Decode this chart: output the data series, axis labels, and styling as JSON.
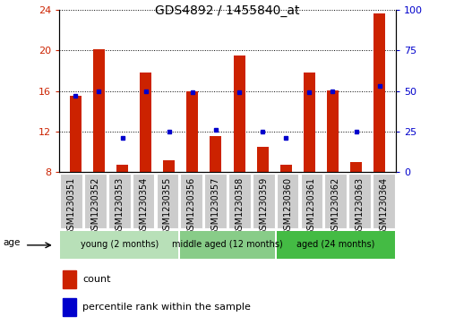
{
  "title": "GDS4892 / 1455840_at",
  "samples": [
    "GSM1230351",
    "GSM1230352",
    "GSM1230353",
    "GSM1230354",
    "GSM1230355",
    "GSM1230356",
    "GSM1230357",
    "GSM1230358",
    "GSM1230359",
    "GSM1230360",
    "GSM1230361",
    "GSM1230362",
    "GSM1230363",
    "GSM1230364"
  ],
  "count_values": [
    15.5,
    20.1,
    8.7,
    17.8,
    9.2,
    16.0,
    11.6,
    19.5,
    10.5,
    8.7,
    17.8,
    16.1,
    9.0,
    23.6
  ],
  "percentile_values": [
    47,
    50,
    21,
    50,
    25,
    49,
    26,
    49,
    25,
    21,
    49,
    50,
    25,
    53
  ],
  "ylim_left": [
    8,
    24
  ],
  "ylim_right": [
    0,
    100
  ],
  "yticks_left": [
    8,
    12,
    16,
    20,
    24
  ],
  "yticks_right": [
    0,
    25,
    50,
    75,
    100
  ],
  "bar_color": "#cc2200",
  "dot_color": "#0000cc",
  "bar_bottom": 8,
  "groups": [
    {
      "label": "young (2 months)",
      "start": 0,
      "end": 5,
      "color": "#b8e0b8"
    },
    {
      "label": "middle aged (12 months)",
      "start": 5,
      "end": 9,
      "color": "#88cc88"
    },
    {
      "label": "aged (24 months)",
      "start": 9,
      "end": 14,
      "color": "#44bb44"
    }
  ],
  "legend_count_label": "count",
  "legend_pct_label": "percentile rank within the sample",
  "age_label": "age",
  "left_axis_color": "#cc2200",
  "right_axis_color": "#0000cc",
  "title_fontsize": 10,
  "tick_fontsize": 8,
  "label_fontsize": 7,
  "bar_width": 0.5,
  "sample_box_color": "#cccccc",
  "bg_color": "#ffffff"
}
